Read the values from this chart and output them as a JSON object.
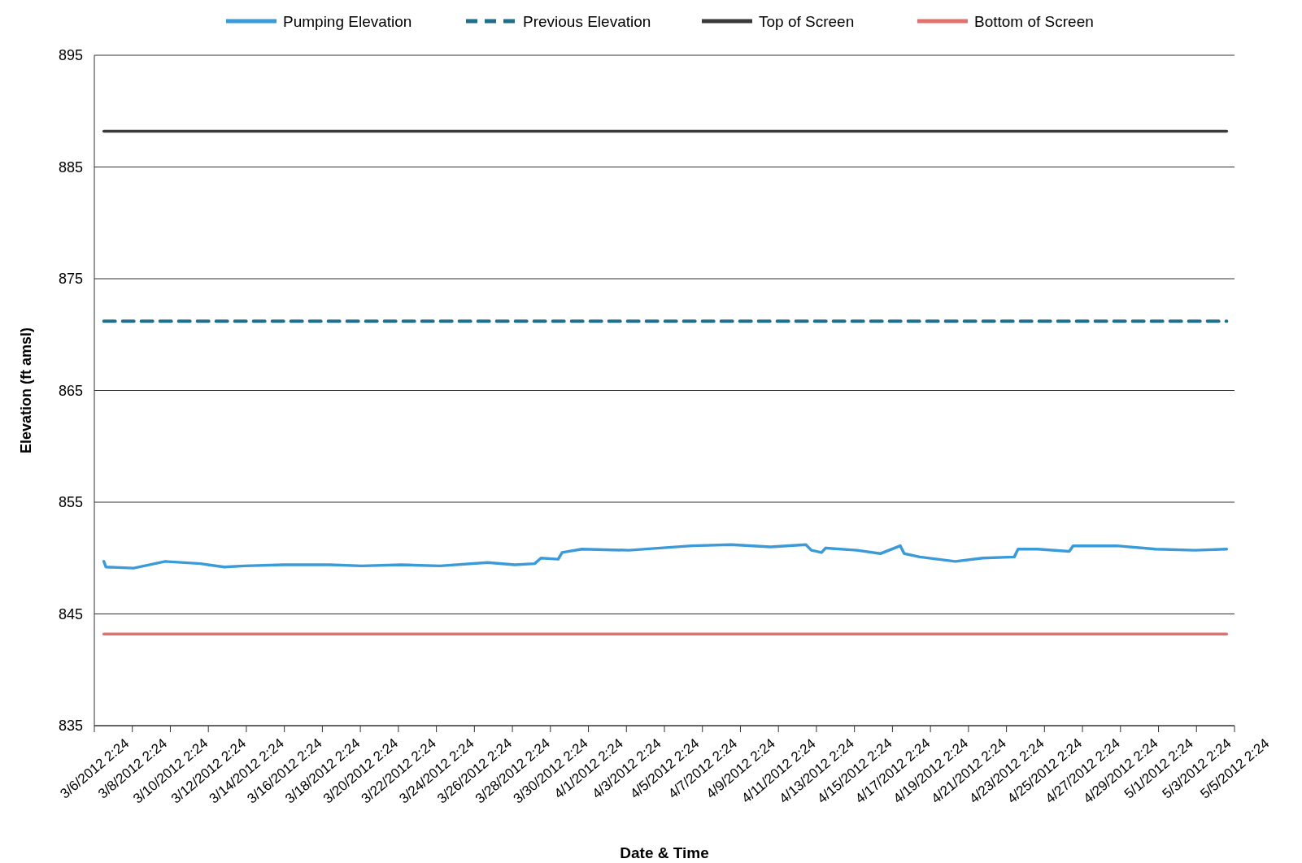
{
  "chart_data": {
    "type": "line",
    "xlabel": "Date & Time",
    "ylabel": "Elevation (ft amsl)",
    "ylim": [
      835,
      895
    ],
    "yticks": [
      835,
      845,
      855,
      865,
      875,
      885,
      895
    ],
    "xlim": [
      "2012-03-06T02:24",
      "2012-05-05T02:24"
    ],
    "xticks": [
      {
        "value": "2012-03-06T02:24",
        "label": "3/6/2012 2:24"
      },
      {
        "value": "2012-03-08T02:24",
        "label": "3/8/2012 2:24"
      },
      {
        "value": "2012-03-10T02:24",
        "label": "3/10/2012 2:24"
      },
      {
        "value": "2012-03-12T02:24",
        "label": "3/12/2012 2:24"
      },
      {
        "value": "2012-03-14T02:24",
        "label": "3/14/2012 2:24"
      },
      {
        "value": "2012-03-16T02:24",
        "label": "3/16/2012 2:24"
      },
      {
        "value": "2012-03-18T02:24",
        "label": "3/18/2012 2:24"
      },
      {
        "value": "2012-03-20T02:24",
        "label": "3/20/2012 2:24"
      },
      {
        "value": "2012-03-22T02:24",
        "label": "3/22/2012 2:24"
      },
      {
        "value": "2012-03-24T02:24",
        "label": "3/24/2012 2:24"
      },
      {
        "value": "2012-03-26T02:24",
        "label": "3/26/2012 2:24"
      },
      {
        "value": "2012-03-28T02:24",
        "label": "3/28/2012 2:24"
      },
      {
        "value": "2012-03-30T02:24",
        "label": "3/30/2012 2:24"
      },
      {
        "value": "2012-04-01T02:24",
        "label": "4/1/2012 2:24"
      },
      {
        "value": "2012-04-03T02:24",
        "label": "4/3/2012 2:24"
      },
      {
        "value": "2012-04-05T02:24",
        "label": "4/5/2012 2:24"
      },
      {
        "value": "2012-04-07T02:24",
        "label": "4/7/2012 2:24"
      },
      {
        "value": "2012-04-09T02:24",
        "label": "4/9/2012 2:24"
      },
      {
        "value": "2012-04-11T02:24",
        "label": "4/11/2012 2:24"
      },
      {
        "value": "2012-04-13T02:24",
        "label": "4/13/2012 2:24"
      },
      {
        "value": "2012-04-15T02:24",
        "label": "4/15/2012 2:24"
      },
      {
        "value": "2012-04-17T02:24",
        "label": "4/17/2012 2:24"
      },
      {
        "value": "2012-04-19T02:24",
        "label": "4/19/2012 2:24"
      },
      {
        "value": "2012-04-21T02:24",
        "label": "4/21/2012 2:24"
      },
      {
        "value": "2012-04-23T02:24",
        "label": "4/23/2012 2:24"
      },
      {
        "value": "2012-04-25T02:24",
        "label": "4/25/2012 2:24"
      },
      {
        "value": "2012-04-27T02:24",
        "label": "4/27/2012 2:24"
      },
      {
        "value": "2012-04-29T02:24",
        "label": "4/29/2012 2:24"
      },
      {
        "value": "2012-05-01T02:24",
        "label": "5/1/2012 2:24"
      },
      {
        "value": "2012-05-03T02:24",
        "label": "5/3/2012 2:24"
      },
      {
        "value": "2012-05-05T02:24",
        "label": "5/5/2012 2:24"
      }
    ],
    "grid": "y",
    "legend": "top",
    "marker": "none",
    "series": [
      {
        "name": "Pumping Elevation",
        "color": "#3b9ad8",
        "line_style": "solid",
        "x": [
          "2012-03-06T14:24",
          "2012-03-06T17:00",
          "2012-03-08T04:00",
          "2012-03-09T20:00",
          "2012-03-11T16:30",
          "2012-03-12T22:24",
          "2012-03-14T00:00",
          "2012-03-16T00:48",
          "2012-03-18T12:00",
          "2012-03-20T04:00",
          "2012-03-22T06:00",
          "2012-03-24T07:00",
          "2012-03-26T19:00",
          "2012-03-28T05:30",
          "2012-03-29T06:30",
          "2012-03-29T14:30",
          "2012-03-30T12:15",
          "2012-03-30T17:15",
          "2012-03-31T18:00",
          "2012-04-03T05:30",
          "2012-04-06T13:00",
          "2012-04-08T14:40",
          "2012-04-10T16:24",
          "2012-04-12T13:00",
          "2012-04-12T20:00",
          "2012-04-13T08:50",
          "2012-04-13T14:00",
          "2012-04-15T05:30",
          "2012-04-16T11:15",
          "2012-04-17T12:15",
          "2012-04-17T17:15",
          "2012-04-18T13:00",
          "2012-04-20T09:40",
          "2012-04-21T20:24",
          "2012-04-23T12:15",
          "2012-04-23T17:00",
          "2012-04-24T18:00",
          "2012-04-26T09:40",
          "2012-04-26T14:40",
          "2012-04-28T21:24",
          "2012-04-30T22:50",
          "2012-05-03T00:30",
          "2012-05-04T16:30"
        ],
        "values": [
          849.7,
          849.2,
          849.1,
          849.7,
          849.5,
          849.2,
          849.3,
          849.4,
          849.4,
          849.3,
          849.4,
          849.3,
          849.6,
          849.4,
          849.5,
          850.0,
          849.9,
          850.5,
          850.8,
          850.7,
          851.1,
          851.2,
          851.0,
          851.2,
          850.7,
          850.5,
          850.9,
          850.7,
          850.4,
          851.1,
          850.4,
          850.1,
          849.7,
          850.0,
          850.1,
          850.8,
          850.8,
          850.6,
          851.1,
          851.1,
          850.8,
          850.7,
          850.8
        ]
      },
      {
        "name": "Previous Elevation",
        "color": "#1f6f8b",
        "line_style": "dashed",
        "x": [
          "2012-03-06T14:24",
          "2012-05-04T16:30"
        ],
        "values": [
          871.2,
          871.2
        ]
      },
      {
        "name": "Top of Screen",
        "color": "#3a3a3a",
        "line_style": "solid",
        "x": [
          "2012-03-06T14:24",
          "2012-05-04T16:30"
        ],
        "values": [
          888.2,
          888.2
        ]
      },
      {
        "name": "Bottom of Screen",
        "color": "#e0716c",
        "line_style": "solid",
        "x": [
          "2012-03-06T14:24",
          "2012-05-04T16:30"
        ],
        "values": [
          843.2,
          843.2
        ]
      }
    ]
  }
}
